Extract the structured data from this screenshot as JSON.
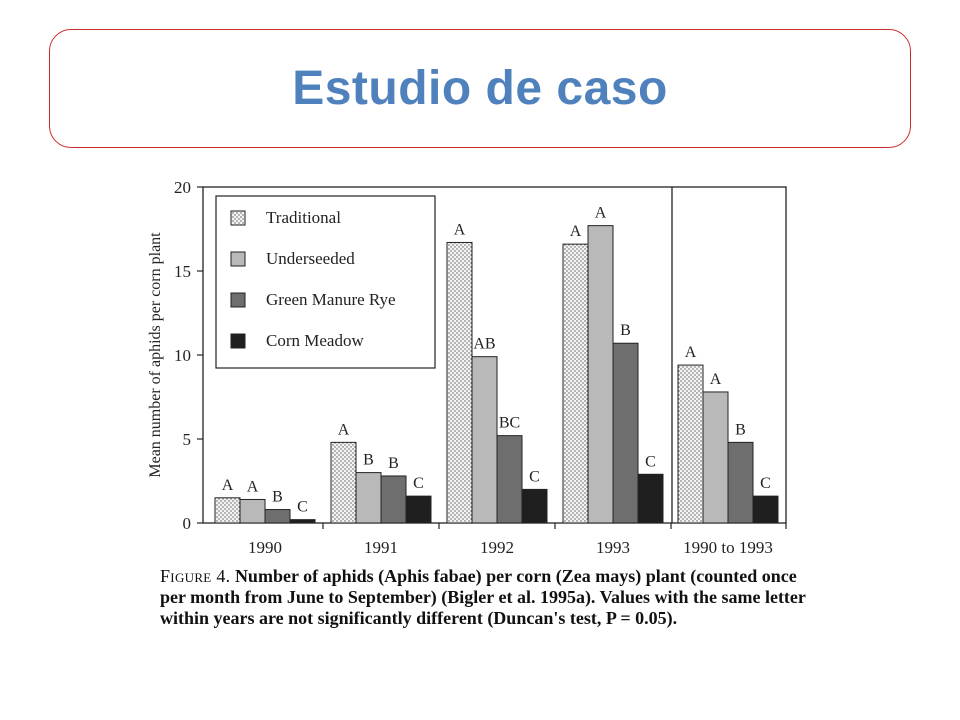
{
  "slide": {
    "title": "Estudio de caso",
    "accent_color": "#4f81bd",
    "border_color": "#cc2b2b"
  },
  "caption": {
    "figure_label": "Figure 4.",
    "text": "Number of aphids (Aphis fabae) per corn (Zea mays) plant (counted once per month from June to September) (Bigler et al. 1995a). Values with the same letter within years are not significantly different (Duncan's test, P = 0.05)."
  },
  "chart_data": {
    "type": "bar",
    "ylabel": "Mean number of aphids per corn plant",
    "xlabel": "",
    "ylim": [
      0,
      20
    ],
    "yticks": [
      0,
      5,
      10,
      15,
      20
    ],
    "categories": [
      "1990",
      "1991",
      "1992",
      "1993",
      "1990 to 1993"
    ],
    "legend_position": "top-left",
    "series": [
      {
        "name": "Traditional",
        "pattern": "dotted",
        "color": "#f2f2f2",
        "values": [
          1.5,
          4.8,
          16.7,
          16.6,
          9.4
        ],
        "letters": [
          "A",
          "A",
          "A",
          "A",
          "A"
        ]
      },
      {
        "name": "Underseeded",
        "pattern": "solid",
        "color": "#b9b9b9",
        "values": [
          1.4,
          3.0,
          9.9,
          17.7,
          7.8
        ],
        "letters": [
          "A",
          "B",
          "AB",
          "A",
          "A"
        ]
      },
      {
        "name": "Green Manure Rye",
        "pattern": "solid",
        "color": "#6e6e6e",
        "values": [
          0.8,
          2.8,
          5.2,
          10.7,
          4.8
        ],
        "letters": [
          "B",
          "B",
          "BC",
          "B",
          "B"
        ]
      },
      {
        "name": "Corn Meadow",
        "pattern": "solid",
        "color": "#1f1f1f",
        "values": [
          0.2,
          1.6,
          2.0,
          2.9,
          1.6
        ],
        "letters": [
          "C",
          "C",
          "C",
          "C",
          "C"
        ]
      }
    ]
  }
}
